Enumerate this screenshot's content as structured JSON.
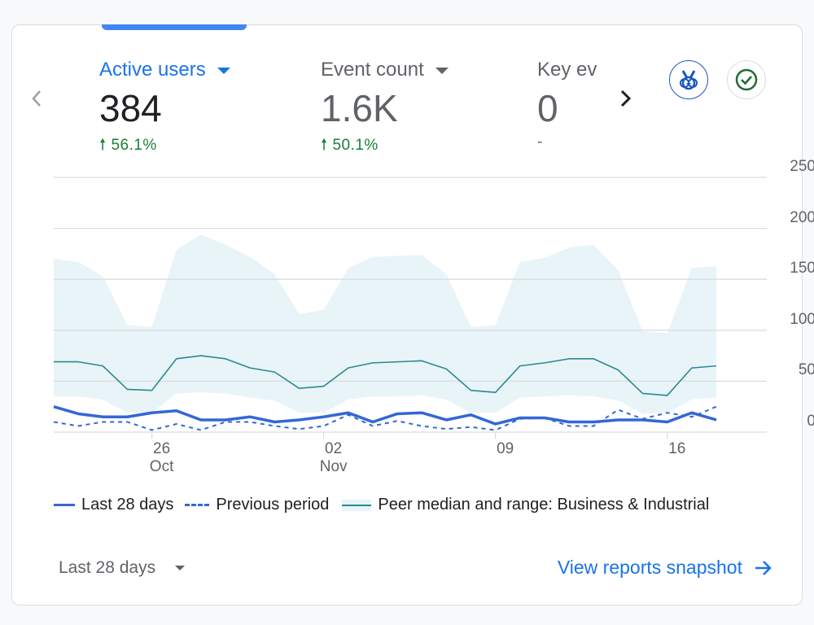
{
  "metrics": [
    {
      "label": "Active users",
      "value": "384",
      "change": "56.1%",
      "direction": "up",
      "active": true
    },
    {
      "label": "Event count",
      "value": "1.6K",
      "change": "50.1%",
      "direction": "up",
      "active": false
    },
    {
      "label": "Key ev",
      "value": "0",
      "change": "-",
      "active": false
    }
  ],
  "icons": {
    "prev": "chevron-left-icon",
    "next": "chevron-right-icon",
    "medal": "medal-icon",
    "check": "check-circle-icon"
  },
  "colors": {
    "accent": "#1a73e8",
    "series_current": "#3367d6",
    "series_previous": "#3367d6",
    "peer_median": "#2a8a8f",
    "peer_range": "#e8f4f8",
    "positive": "#188038"
  },
  "legend": {
    "current": "Last 28 days",
    "previous": "Previous period",
    "peer": "Peer median and range: Business & Industrial"
  },
  "footer": {
    "date_range": "Last 28 days",
    "link": "View reports snapshot"
  },
  "chart_data": {
    "type": "line",
    "x_start": "2024-10-22",
    "x_ticks": [
      {
        "date": "2024-10-26",
        "label": "26",
        "sublabel": "Oct"
      },
      {
        "date": "2024-11-02",
        "label": "02",
        "sublabel": "Nov"
      },
      {
        "date": "2024-11-09",
        "label": "09",
        "sublabel": ""
      },
      {
        "date": "2024-11-16",
        "label": "16",
        "sublabel": ""
      }
    ],
    "ylim": [
      0,
      250
    ],
    "y_ticks": [
      0,
      50,
      100,
      150,
      200,
      250
    ],
    "y_axis_side": "right",
    "grid": true,
    "legend_position": "bottom",
    "series": [
      {
        "name": "Last 28 days",
        "style": "solid",
        "values": [
          25,
          18,
          15,
          15,
          19,
          21,
          12,
          12,
          15,
          10,
          12,
          15,
          19,
          10,
          18,
          19,
          12,
          17,
          8,
          14,
          14,
          10,
          10,
          12,
          12,
          10,
          19,
          12
        ]
      },
      {
        "name": "Previous period",
        "style": "dashed",
        "values": [
          10,
          6,
          10,
          10,
          2,
          8,
          2,
          10,
          10,
          6,
          3,
          6,
          17,
          6,
          11,
          6,
          3,
          5,
          2,
          13,
          14,
          6,
          6,
          22,
          13,
          19,
          15,
          25
        ]
      },
      {
        "name": "Peer median",
        "style": "solid-thin",
        "values": [
          69,
          69,
          65,
          42,
          41,
          72,
          75,
          72,
          63,
          59,
          43,
          45,
          63,
          68,
          69,
          70,
          62,
          41,
          39,
          65,
          68,
          72,
          72,
          61,
          38,
          36,
          63,
          65
        ]
      }
    ],
    "range": {
      "name": "Peer range",
      "upper": [
        170,
        167,
        153,
        105,
        103,
        179,
        194,
        184,
        172,
        155,
        116,
        120,
        161,
        172,
        173,
        174,
        155,
        103,
        105,
        167,
        171,
        181,
        184,
        159,
        99,
        97,
        161,
        163
      ],
      "lower": [
        35,
        35,
        32,
        19,
        19,
        38,
        39,
        38,
        34,
        31,
        19,
        19,
        32,
        35,
        35,
        36,
        32,
        19,
        19,
        34,
        35,
        36,
        35,
        31,
        18,
        19,
        32,
        34
      ]
    }
  }
}
